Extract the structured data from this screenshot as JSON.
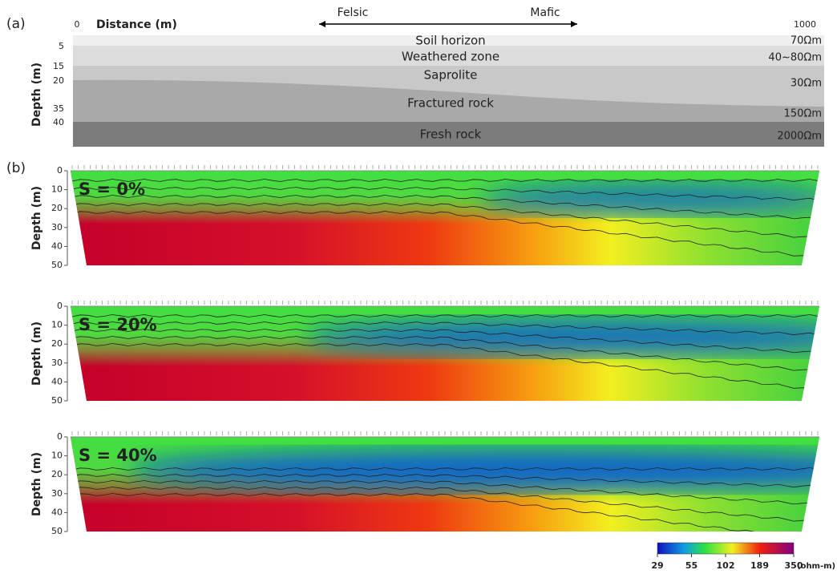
{
  "panel_a": {
    "label": "(a)",
    "distance_start": "0",
    "distance_title": "Distance (m)",
    "felsic": "Felsic",
    "mafic": "Mafic",
    "distance_end": "1000",
    "depth_title": "Depth (m)",
    "depth_ticks": [
      "5",
      "15",
      "20",
      "35",
      "40"
    ],
    "layers": [
      {
        "name": "Soil horizon",
        "resistivity": "70Ωm"
      },
      {
        "name": "Weathered zone",
        "resistivity": "40~80Ωm"
      },
      {
        "name": "Saprolite",
        "resistivity": "30Ωm"
      },
      {
        "name": "Fractured rock",
        "resistivity": "150Ωm"
      },
      {
        "name": "Fresh rock",
        "resistivity": "2000Ωm"
      }
    ]
  },
  "panel_b": {
    "label": "(b)",
    "sections": [
      {
        "label": "S = 0%",
        "depth_title": "Depth (m)",
        "depth_ticks": [
          "0",
          "10",
          "20",
          "30",
          "40",
          "50"
        ]
      },
      {
        "label": "S = 20%",
        "depth_title": "Depth (m)",
        "depth_ticks": [
          "0",
          "10",
          "20",
          "30",
          "40",
          "50"
        ]
      },
      {
        "label": "S = 40%",
        "depth_title": "Depth (m)",
        "depth_ticks": [
          "0",
          "10",
          "20",
          "30",
          "40",
          "50"
        ]
      }
    ],
    "colorbar": {
      "ticks": [
        "29",
        "55",
        "102",
        "189",
        "350"
      ],
      "unit": "(ohm-m)"
    }
  }
}
